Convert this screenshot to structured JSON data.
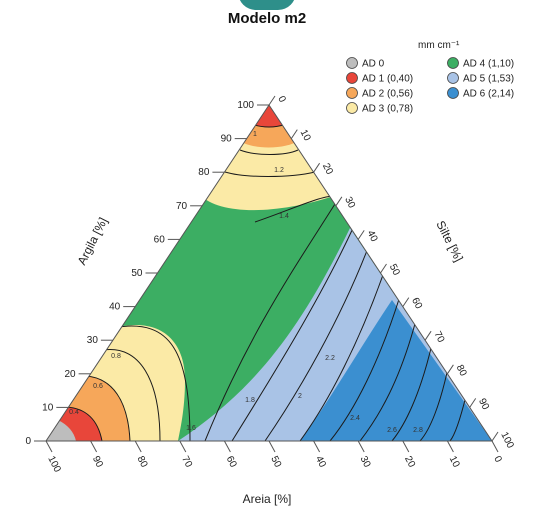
{
  "chart_data": {
    "type": "ternary-contour",
    "title": "Modelo m2",
    "axes": {
      "left": {
        "label": "Argila [%]",
        "ticks": [
          "0",
          "10",
          "20",
          "30",
          "40",
          "50",
          "60",
          "70",
          "80",
          "90",
          "100"
        ]
      },
      "right": {
        "label": "Silte [%]",
        "ticks": [
          "0",
          "10",
          "20",
          "30",
          "40",
          "50",
          "60",
          "70",
          "80",
          "90",
          "100"
        ]
      },
      "bottom": {
        "label": "Areia [%]",
        "ticks": [
          "100",
          "90",
          "80",
          "70",
          "60",
          "50",
          "40",
          "30",
          "20",
          "10",
          "0"
        ]
      }
    },
    "legend": {
      "unit": "mm cm⁻¹",
      "placement": "top-right",
      "entries": [
        {
          "label": "AD 0",
          "color": "#bdbdbd"
        },
        {
          "label": "AD 1 (0,40)",
          "color": "#e8463a"
        },
        {
          "label": "AD 2 (0,56)",
          "color": "#f6a75a"
        },
        {
          "label": "AD 3 (0,78)",
          "color": "#fbeaa6"
        },
        {
          "label": "AD 4 (1,10)",
          "color": "#3cae63"
        },
        {
          "label": "AD 5 (1,53)",
          "color": "#a9c3e6"
        },
        {
          "label": "AD 6 (2,14)",
          "color": "#3b8fd0"
        }
      ]
    },
    "contour_labels": [
      "0.4",
      "0.6",
      "0.8",
      "1",
      "1.2",
      "1.4",
      "1.6",
      "1.8",
      "2",
      "2.2",
      "2.4",
      "2.6",
      "2.8"
    ]
  }
}
